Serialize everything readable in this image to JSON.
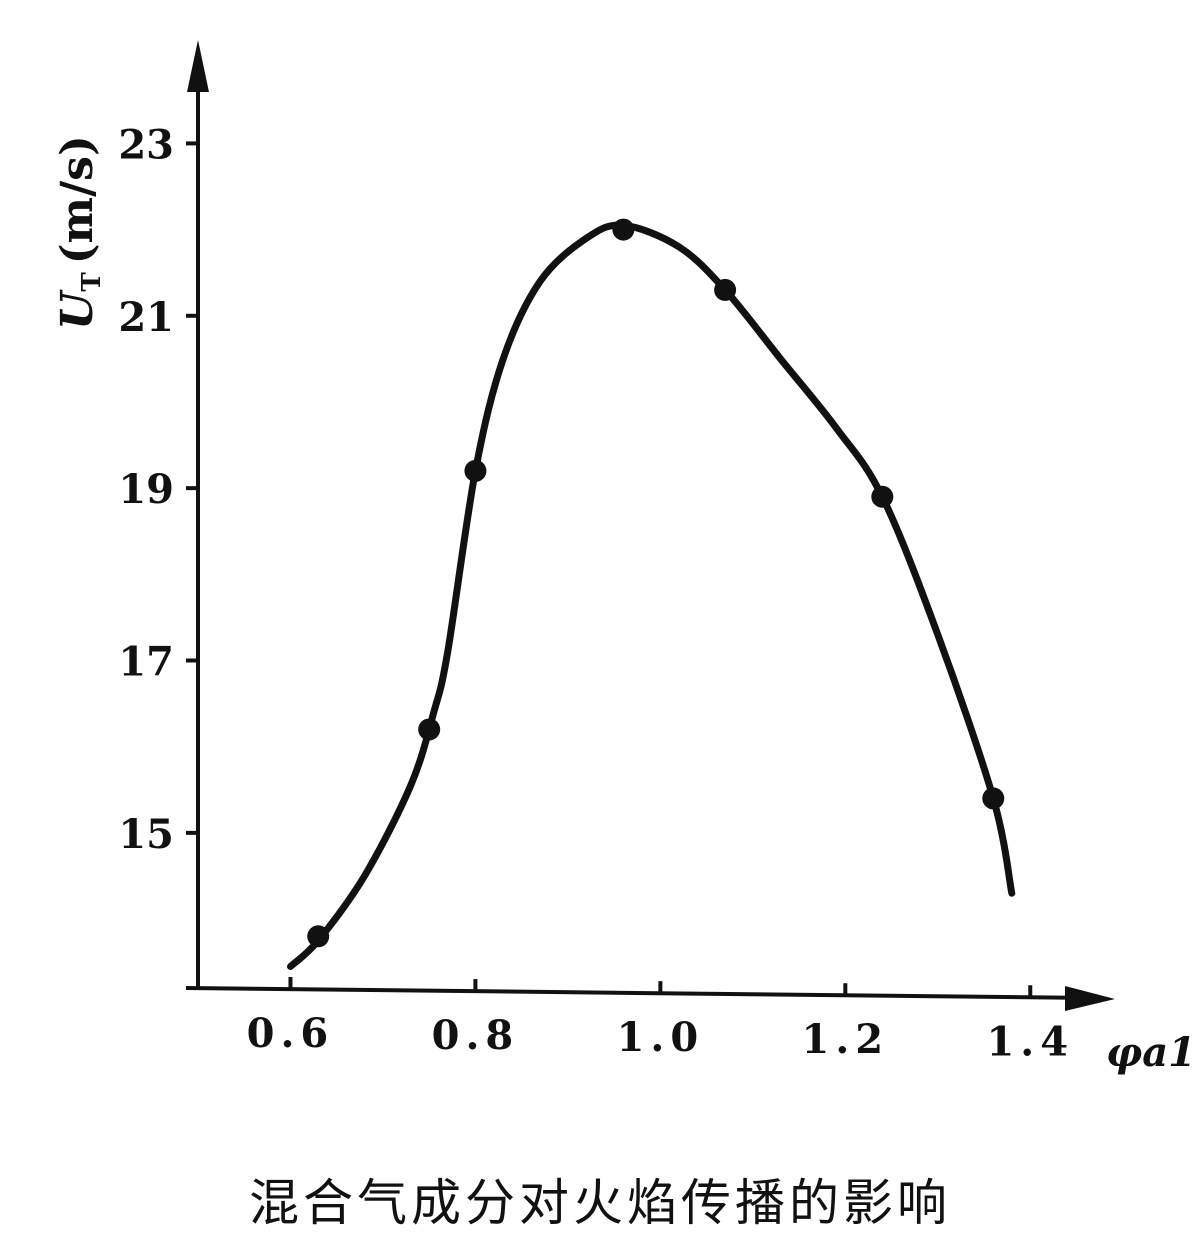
{
  "chart_data": {
    "type": "line",
    "title": "",
    "caption": "混合气成分对火焰传播的影响",
    "xlabel": "φa1",
    "ylabel_main": "U",
    "ylabel_sub": "T",
    "ylabel_unit": "(m/s)",
    "xlim": [
      0.5,
      1.47
    ],
    "ylim": [
      13.2,
      24.2
    ],
    "x_ticks": [
      0.6,
      0.8,
      1.0,
      1.2,
      1.4
    ],
    "x_tick_labels": [
      "0.6",
      "0.8",
      "1.0",
      "1.2",
      "1.4"
    ],
    "y_ticks": [
      15,
      17,
      19,
      21,
      23
    ],
    "y_tick_labels": [
      "15",
      "17",
      "19",
      "21",
      "23"
    ],
    "grid": false,
    "series": [
      {
        "markers": {
          "x": [
            0.63,
            0.75,
            0.8,
            0.96,
            1.07,
            1.24,
            1.36
          ],
          "y": [
            13.8,
            16.2,
            19.2,
            22.0,
            21.3,
            18.9,
            15.4
          ]
        },
        "curve": {
          "x": [
            0.6,
            0.63,
            0.68,
            0.73,
            0.755,
            0.77,
            0.8,
            0.83,
            0.87,
            0.92,
            0.96,
            1.02,
            1.07,
            1.13,
            1.19,
            1.24,
            1.3,
            1.36,
            1.38
          ],
          "y": [
            13.45,
            13.75,
            14.5,
            15.55,
            16.4,
            17.1,
            19.2,
            20.5,
            21.4,
            21.9,
            22.05,
            21.8,
            21.3,
            20.5,
            19.7,
            18.9,
            17.3,
            15.4,
            14.3
          ]
        }
      }
    ]
  }
}
